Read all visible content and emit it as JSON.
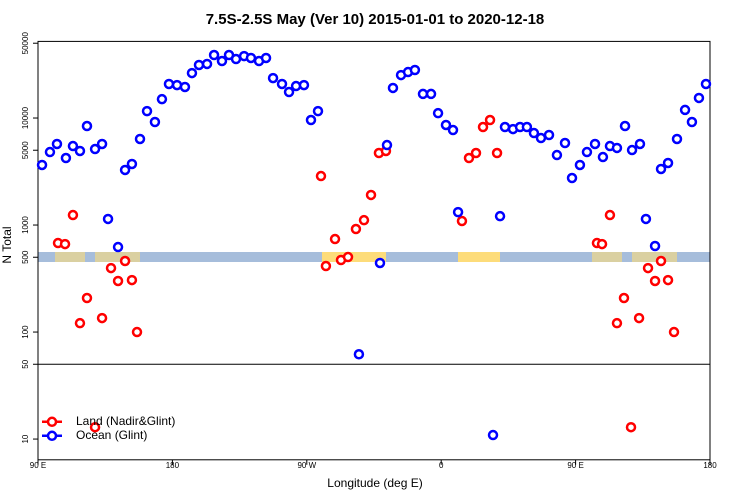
{
  "chart_data": {
    "type": "scatter",
    "title": "7.5S-2.5S May (Ver 10)   2015-01-01 to 2020-12-18",
    "x_label": "Longitude (deg E)",
    "y_label": "N Total",
    "log_y": true,
    "legend": "bottom-left",
    "hlines": [
      50
    ],
    "xlim": [
      90,
      540
    ],
    "ylim": [
      6.4,
      52000
    ],
    "xticks": [
      {
        "value": 90,
        "label": "90 E"
      },
      {
        "value": 180,
        "label": "180"
      },
      {
        "value": 270,
        "label": "90 W"
      },
      {
        "value": 360,
        "label": "0"
      },
      {
        "value": 450,
        "label": "90 E"
      },
      {
        "value": 540,
        "label": "180"
      }
    ],
    "yticks": [
      10,
      50,
      100,
      500,
      1000,
      5000,
      10000,
      50000
    ],
    "series": [
      {
        "name": "Land (Nadir&Glint)",
        "color": "#ff0000",
        "x": [
          103.4,
          108.1,
          113.4,
          118.1,
          122.8,
          128.2,
          132.9,
          138.9,
          143.6,
          148.3,
          152.9,
          156.3,
          279.5,
          282.8,
          288.9,
          292.9,
          297.6,
          302.9,
          308.3,
          313.0,
          318.3,
          323.0,
          373.9,
          378.6,
          383.3,
          388.0,
          392.7,
          397.4,
          464.3,
          467.7,
          473.0,
          477.7,
          482.4,
          487.1,
          492.5,
          498.5,
          503.2,
          507.2,
          511.9,
          515.9
        ],
        "values": [
          679,
          664,
          1240,
          121,
          208,
          12.9,
          135,
          396,
          300,
          461,
          306,
          100,
          2870,
          414,
          740,
          471,
          502,
          918,
          1110,
          1910,
          4710,
          4920,
          1090,
          4230,
          4710,
          8240,
          9580,
          4710,
          679,
          664,
          1240,
          121,
          208,
          12.9,
          135,
          396,
          300,
          461,
          306,
          100
        ]
      },
      {
        "name": "Ocean (Glint)",
        "color": "#0000ff",
        "x": [
          92.7,
          98.0,
          102.7,
          108.7,
          113.4,
          118.1,
          122.8,
          128.2,
          132.9,
          136.9,
          143.6,
          148.3,
          152.9,
          158.3,
          163.0,
          168.3,
          173.0,
          177.7,
          183.1,
          188.4,
          193.1,
          197.8,
          203.2,
          207.9,
          213.2,
          217.9,
          222.6,
          228.0,
          232.6,
          238.0,
          242.7,
          247.4,
          253.4,
          258.1,
          262.8,
          268.1,
          272.8,
          277.5,
          304.9,
          319.0,
          323.7,
          327.7,
          333.1,
          337.8,
          342.4,
          347.8,
          353.2,
          357.9,
          363.2,
          367.9,
          371.3,
          394.7,
          399.4,
          402.7,
          408.1,
          412.8,
          417.4,
          422.1,
          426.8,
          432.2,
          437.5,
          442.9,
          447.6,
          452.9,
          457.6,
          463.0,
          468.3,
          473.0,
          477.7,
          483.1,
          487.8,
          493.1,
          497.1,
          503.2,
          507.2,
          511.9,
          517.9,
          523.3,
          527.9,
          532.6,
          537.3
        ],
        "values": [
          3640,
          4810,
          5720,
          4230,
          5470,
          4920,
          8420,
          5130,
          5720,
          1140,
          623,
          3270,
          3720,
          6370,
          11600,
          9180,
          15000,
          20800,
          20300,
          19500,
          26300,
          31300,
          32000,
          38800,
          34100,
          38800,
          35600,
          37900,
          36400,
          34100,
          36400,
          23600,
          20800,
          17500,
          19900,
          20300,
          9580,
          11600,
          62,
          442,
          5590,
          19100,
          25200,
          26900,
          28100,
          16800,
          16800,
          11100,
          8610,
          7720,
          1320,
          10.9,
          1210,
          8240,
          7880,
          8240,
          8240,
          7240,
          6500,
          6940,
          4510,
          5840,
          2750,
          3640,
          4810,
          5720,
          4320,
          5470,
          5250,
          8420,
          5020,
          5720,
          1140,
          637,
          3340,
          3800,
          6370,
          11900,
          9180,
          15400,
          20800
        ]
      }
    ]
  }
}
